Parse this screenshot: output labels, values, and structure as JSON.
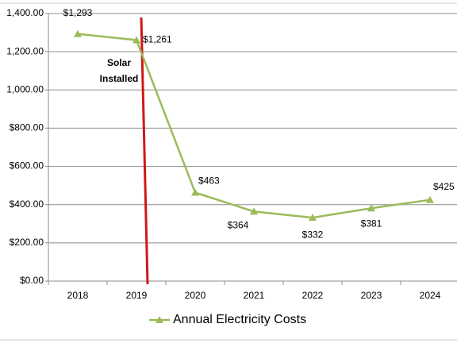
{
  "chart_data": {
    "type": "line",
    "categories": [
      "2018",
      "2019",
      "2020",
      "2021",
      "2022",
      "2023",
      "2024"
    ],
    "series": [
      {
        "name": "Annual Electricity Costs",
        "color": "#9bbb59",
        "values": [
          1293,
          1261,
          463,
          364,
          332,
          381,
          425
        ],
        "value_labels": [
          "$1,293",
          "$1,261",
          "$463",
          "$364",
          "$332",
          "$381",
          "$425"
        ]
      }
    ],
    "ylim": [
      0,
      1400
    ],
    "yticks": [
      {
        "value": 0,
        "label": "$0.00"
      },
      {
        "value": 200,
        "label": "$200.00"
      },
      {
        "value": 400,
        "label": "$400.00"
      },
      {
        "value": 600,
        "label": "$600.00"
      },
      {
        "value": 800,
        "label": "$800.00"
      },
      {
        "value": 1000,
        "label": "1,000.00"
      },
      {
        "value": 1200,
        "label": "1,200.00"
      },
      {
        "value": 1400,
        "label": "1,400.00"
      }
    ],
    "grid": true,
    "annotations": [
      "Solar",
      "Installed"
    ],
    "legend": "bottom"
  }
}
